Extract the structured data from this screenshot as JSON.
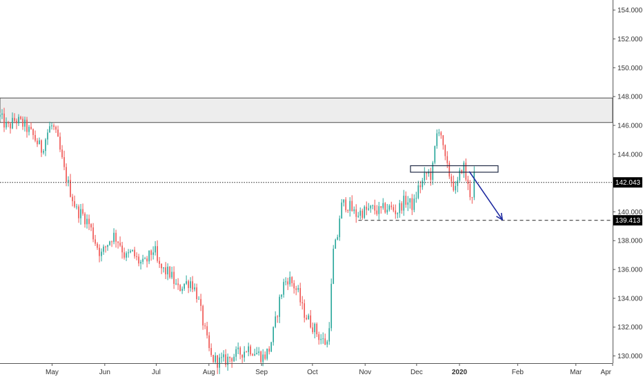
{
  "chart_data": {
    "type": "candlestick",
    "title": "",
    "xlabel": "",
    "ylabel": "",
    "ylim": [
      129.5,
      154.7
    ],
    "y_ticks": [
      "130.000",
      "132.000",
      "134.000",
      "136.000",
      "138.000",
      "140.000",
      "142.000",
      "144.000",
      "146.000",
      "148.000",
      "150.000",
      "152.000",
      "154.000"
    ],
    "x_ticks": [
      {
        "label": "May",
        "pos": 0.085,
        "bold": false
      },
      {
        "label": "Jun",
        "pos": 0.171,
        "bold": false
      },
      {
        "label": "Jul",
        "pos": 0.255,
        "bold": false
      },
      {
        "label": "Aug",
        "pos": 0.341,
        "bold": false
      },
      {
        "label": "Sep",
        "pos": 0.427,
        "bold": false
      },
      {
        "label": "Oct",
        "pos": 0.51,
        "bold": false
      },
      {
        "label": "Nov",
        "pos": 0.596,
        "bold": false
      },
      {
        "label": "Dec",
        "pos": 0.68,
        "bold": false
      },
      {
        "label": "2020",
        "pos": 0.75,
        "bold": true
      },
      {
        "label": "Feb",
        "pos": 0.845,
        "bold": false
      },
      {
        "label": "Mar",
        "pos": 0.94,
        "bold": false
      },
      {
        "label": "Apr",
        "pos": 1.0,
        "bold": false
      }
    ],
    "price_path": [
      [
        0.0,
        146.6
      ],
      [
        0.012,
        145.8
      ],
      [
        0.025,
        146.4
      ],
      [
        0.04,
        146.0
      ],
      [
        0.055,
        145.2
      ],
      [
        0.068,
        144.3
      ],
      [
        0.08,
        145.8
      ],
      [
        0.086,
        146.0
      ],
      [
        0.095,
        144.8
      ],
      [
        0.105,
        142.8
      ],
      [
        0.115,
        141.4
      ],
      [
        0.125,
        140.1
      ],
      [
        0.135,
        139.8
      ],
      [
        0.145,
        139.2
      ],
      [
        0.155,
        138.0
      ],
      [
        0.165,
        137.0
      ],
      [
        0.175,
        137.8
      ],
      [
        0.185,
        138.4
      ],
      [
        0.195,
        137.9
      ],
      [
        0.205,
        136.8
      ],
      [
        0.215,
        137.2
      ],
      [
        0.225,
        136.6
      ],
      [
        0.235,
        136.3
      ],
      [
        0.245,
        137.0
      ],
      [
        0.252,
        137.5
      ],
      [
        0.258,
        136.2
      ],
      [
        0.268,
        135.9
      ],
      [
        0.278,
        135.7
      ],
      [
        0.29,
        134.6
      ],
      [
        0.3,
        135.0
      ],
      [
        0.312,
        135.2
      ],
      [
        0.322,
        134.2
      ],
      [
        0.33,
        132.6
      ],
      [
        0.338,
        131.0
      ],
      [
        0.344,
        129.9
      ],
      [
        0.356,
        129.6
      ],
      [
        0.368,
        129.7
      ],
      [
        0.38,
        130.0
      ],
      [
        0.392,
        130.2
      ],
      [
        0.4,
        130.4
      ],
      [
        0.405,
        130.6
      ],
      [
        0.42,
        130.2
      ],
      [
        0.43,
        129.9
      ],
      [
        0.44,
        130.5
      ],
      [
        0.448,
        132.0
      ],
      [
        0.456,
        133.8
      ],
      [
        0.463,
        135.0
      ],
      [
        0.47,
        135.4
      ],
      [
        0.478,
        135.0
      ],
      [
        0.486,
        134.4
      ],
      [
        0.494,
        133.2
      ],
      [
        0.502,
        132.6
      ],
      [
        0.512,
        132.0
      ],
      [
        0.52,
        131.4
      ],
      [
        0.528,
        131.0
      ],
      [
        0.534,
        130.9
      ],
      [
        0.538,
        132.6
      ],
      [
        0.544,
        137.2
      ],
      [
        0.55,
        138.0
      ],
      [
        0.556,
        140.3
      ],
      [
        0.562,
        140.6
      ],
      [
        0.57,
        140.4
      ],
      [
        0.58,
        139.8
      ],
      [
        0.59,
        140.0
      ],
      [
        0.6,
        140.1
      ],
      [
        0.61,
        140.2
      ],
      [
        0.62,
        140.0
      ],
      [
        0.63,
        140.3
      ],
      [
        0.64,
        140.2
      ],
      [
        0.648,
        140.0
      ],
      [
        0.655,
        140.5
      ],
      [
        0.662,
        140.8
      ],
      [
        0.668,
        140.6
      ],
      [
        0.675,
        140.4
      ],
      [
        0.682,
        141.6
      ],
      [
        0.69,
        142.1
      ],
      [
        0.697,
        142.7
      ],
      [
        0.705,
        142.5
      ],
      [
        0.712,
        145.2
      ],
      [
        0.718,
        146.1
      ],
      [
        0.724,
        144.0
      ],
      [
        0.73,
        143.0
      ],
      [
        0.738,
        142.1
      ],
      [
        0.744,
        141.4
      ],
      [
        0.75,
        142.5
      ],
      [
        0.756,
        143.4
      ],
      [
        0.762,
        142.0
      ],
      [
        0.766,
        141.4
      ],
      [
        0.77,
        141.0
      ],
      [
        0.774,
        142.6
      ]
    ],
    "resistance_zone": {
      "from": 146.2,
      "to": 147.9
    },
    "small_box": {
      "x_start": 0.67,
      "x_end": 0.813,
      "from": 142.75,
      "to": 143.2
    },
    "arrow": {
      "x_start": 0.766,
      "y_start": 142.8,
      "x_end": 0.82,
      "y_end": 139.45
    },
    "current_price_line": 142.043,
    "target_line": {
      "value": 139.413,
      "x_start": 0.585
    },
    "price_labels": [
      {
        "text": "142.043",
        "value": 142.043
      },
      {
        "text": "139.413",
        "value": 139.413
      }
    ],
    "colors": {
      "up": "#26a69a",
      "down": "#ef5350",
      "arrow": "#1e2aa0",
      "zone_fill": "#ededed",
      "zone_border": "#4a4a4a",
      "label_bg": "#000000"
    }
  }
}
